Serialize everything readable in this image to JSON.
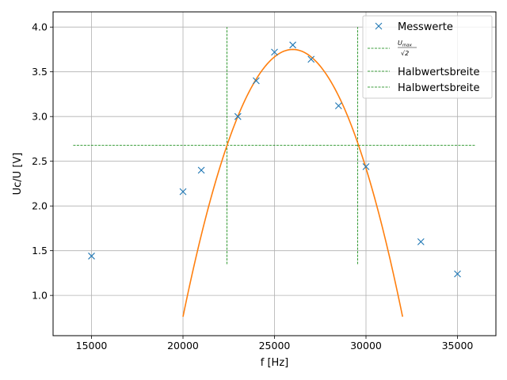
{
  "chart_data": {
    "type": "scatter",
    "xlabel": "f [Hz]",
    "ylabel": "Uc/U [V]",
    "xlim": [
      12900,
      37100
    ],
    "ylim": [
      0.55,
      4.17
    ],
    "grid": true,
    "legend_position": "top-right",
    "x_ticks": [
      15000,
      20000,
      25000,
      30000,
      35000
    ],
    "y_ticks": [
      1.0,
      1.5,
      2.0,
      2.5,
      3.0,
      3.5,
      4.0
    ],
    "x_tick_labels": [
      "15000",
      "20000",
      "25000",
      "30000",
      "35000"
    ],
    "y_tick_labels": [
      "1.0",
      "1.5",
      "2.0",
      "2.5",
      "3.0",
      "3.5",
      "4.0"
    ],
    "colors": {
      "data": "#1f77b4",
      "fit": "#ff7f0e",
      "guides": "#008000"
    },
    "measurements": {
      "name": "Messwerte",
      "marker": "x",
      "x": [
        15000,
        20000,
        21000,
        23000,
        24000,
        25000,
        26000,
        27000,
        28500,
        30000,
        33000,
        35000
      ],
      "y": [
        1.44,
        2.16,
        2.4,
        3.0,
        3.4,
        3.72,
        3.8,
        3.64,
        3.12,
        2.44,
        1.6,
        1.24
      ]
    },
    "fit": {
      "x_range": [
        20000,
        32000
      ],
      "peak_x": 26000,
      "peak_y": 3.75,
      "curvature": 8.3e-08
    },
    "umax_line": {
      "label_num": "U",
      "label_num_sub": "max",
      "label_den": "√2",
      "y": 2.68,
      "x_range": [
        14000,
        36000
      ]
    },
    "halfwidth_lines": [
      {
        "name": "Halbwertsbreite",
        "x": 22400,
        "y_range": [
          1.35,
          4.0
        ]
      },
      {
        "name": "Halbwertsbreite",
        "x": 29550,
        "y_range": [
          1.35,
          4.0
        ]
      }
    ]
  }
}
